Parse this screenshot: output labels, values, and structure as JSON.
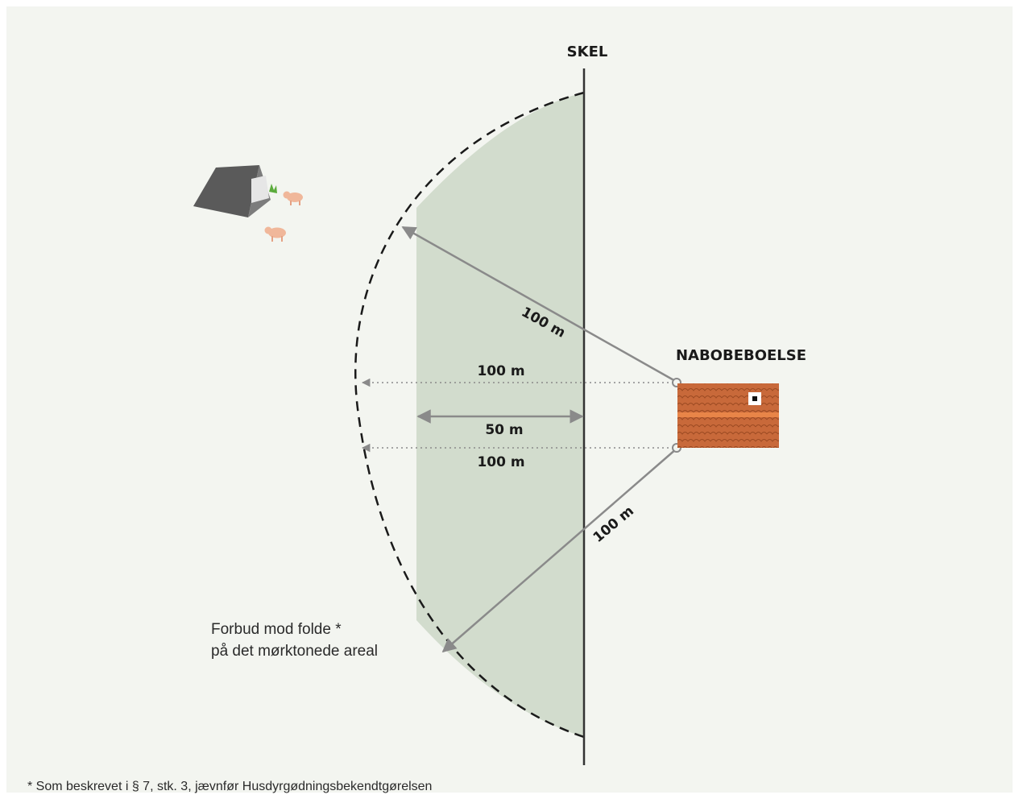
{
  "labels": {
    "boundary": "SKEL",
    "neighbour": "NABOBEBOELSE",
    "dist_upper_diagonal": "100 m",
    "dist_upper_horizontal": "100 m",
    "dist_band_width": "50 m",
    "dist_lower_horizontal": "100 m",
    "dist_lower_diagonal": "100 m",
    "prohibition_line1": "Forbud mod folde *",
    "prohibition_line2": "på det mørktonede areal"
  },
  "footnote": "* Som beskrevet i § 7, stk. 3, jævnfør Husdyrgødningsbekendtgørelsen",
  "colors": {
    "background": "#f3f5f0",
    "prohibited_zone": "#d2dccd",
    "arrow": "#8a8a8a",
    "boundary_line": "#333333",
    "roof": "#c8693a",
    "roof_stripe": "#e88548"
  }
}
